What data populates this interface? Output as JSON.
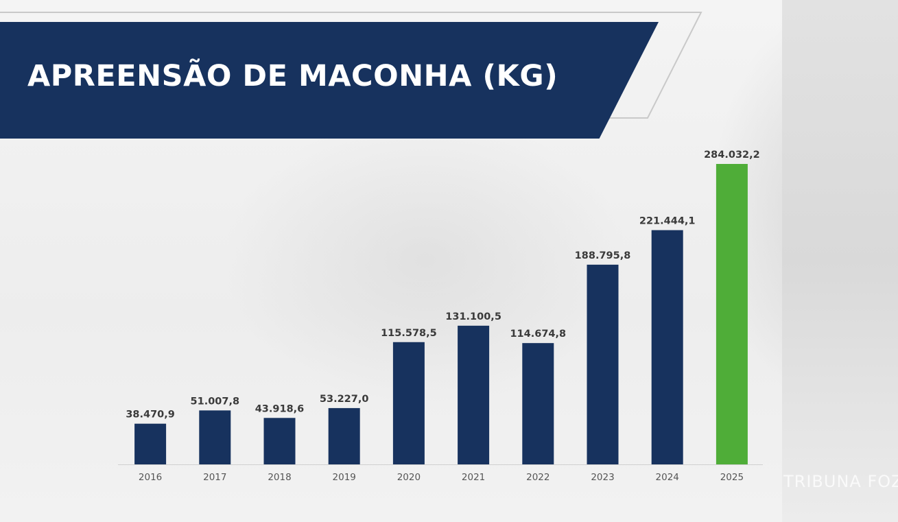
{
  "header": {
    "title": "APREENSÃO DE MACONHA (KG)"
  },
  "watermark": "TRIBUNA FOZ",
  "colors": {
    "bar": "#17325e",
    "highlight": "#4fad38",
    "banner": "#17325e"
  },
  "chart_data": {
    "type": "bar",
    "title": "APREENSÃO DE MACONHA (KG)",
    "xlabel": "",
    "ylabel": "",
    "categories": [
      "2016",
      "2017",
      "2018",
      "2019",
      "2020",
      "2021",
      "2022",
      "2023",
      "2024",
      "2025"
    ],
    "values": [
      38470.9,
      51007.8,
      43918.6,
      53227.0,
      115578.5,
      131100.5,
      114674.8,
      188795.8,
      221444.1,
      284032.2
    ],
    "value_labels": [
      "38.470,9",
      "51.007,8",
      "43.918,6",
      "53.227,0",
      "115.578,5",
      "131.100,5",
      "114.674,8",
      "188.795,8",
      "221.444,1",
      "284.032,2"
    ],
    "highlight_category": "2025",
    "ylim": [
      0,
      284032.2
    ],
    "grid": false,
    "legend": "none"
  }
}
